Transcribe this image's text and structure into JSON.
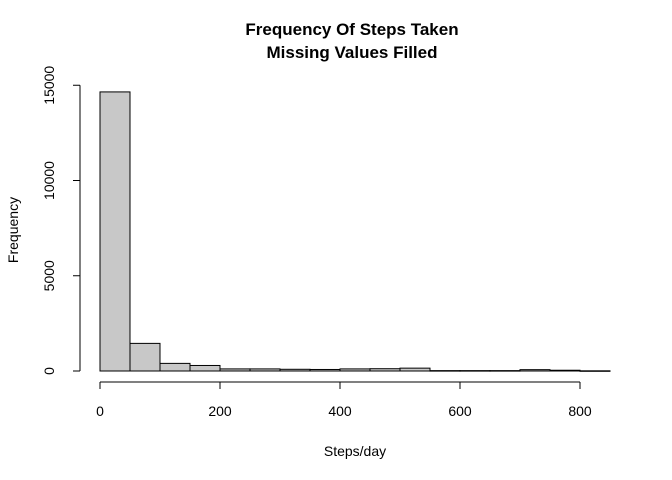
{
  "chart_data": {
    "type": "bar",
    "title": "Frequency Of Steps Taken",
    "subtitle": "Missing Values Filled",
    "xlabel": "Steps/day",
    "ylabel": "Frequency",
    "bin_width": 50,
    "bins": [
      {
        "x0": 0,
        "x1": 50,
        "count": 14650
      },
      {
        "x0": 50,
        "x1": 100,
        "count": 1450
      },
      {
        "x0": 100,
        "x1": 150,
        "count": 400
      },
      {
        "x0": 150,
        "x1": 200,
        "count": 290
      },
      {
        "x0": 200,
        "x1": 250,
        "count": 110
      },
      {
        "x0": 250,
        "x1": 300,
        "count": 110
      },
      {
        "x0": 300,
        "x1": 350,
        "count": 90
      },
      {
        "x0": 350,
        "x1": 400,
        "count": 80
      },
      {
        "x0": 400,
        "x1": 450,
        "count": 110
      },
      {
        "x0": 450,
        "x1": 500,
        "count": 120
      },
      {
        "x0": 500,
        "x1": 550,
        "count": 150
      },
      {
        "x0": 550,
        "x1": 600,
        "count": 20
      },
      {
        "x0": 600,
        "x1": 650,
        "count": 20
      },
      {
        "x0": 650,
        "x1": 700,
        "count": 20
      },
      {
        "x0": 700,
        "x1": 750,
        "count": 70
      },
      {
        "x0": 750,
        "x1": 800,
        "count": 40
      },
      {
        "x0": 800,
        "x1": 850,
        "count": 10
      }
    ],
    "xlim": [
      0,
      850
    ],
    "ylim": [
      0,
      15000
    ],
    "x_ticks": [
      "0",
      "200",
      "400",
      "600",
      "800"
    ],
    "y_ticks": [
      "0",
      "5000",
      "10000",
      "15000"
    ],
    "grid": false,
    "bar_color": "#c8c8c8",
    "edge_color": "#000000"
  }
}
